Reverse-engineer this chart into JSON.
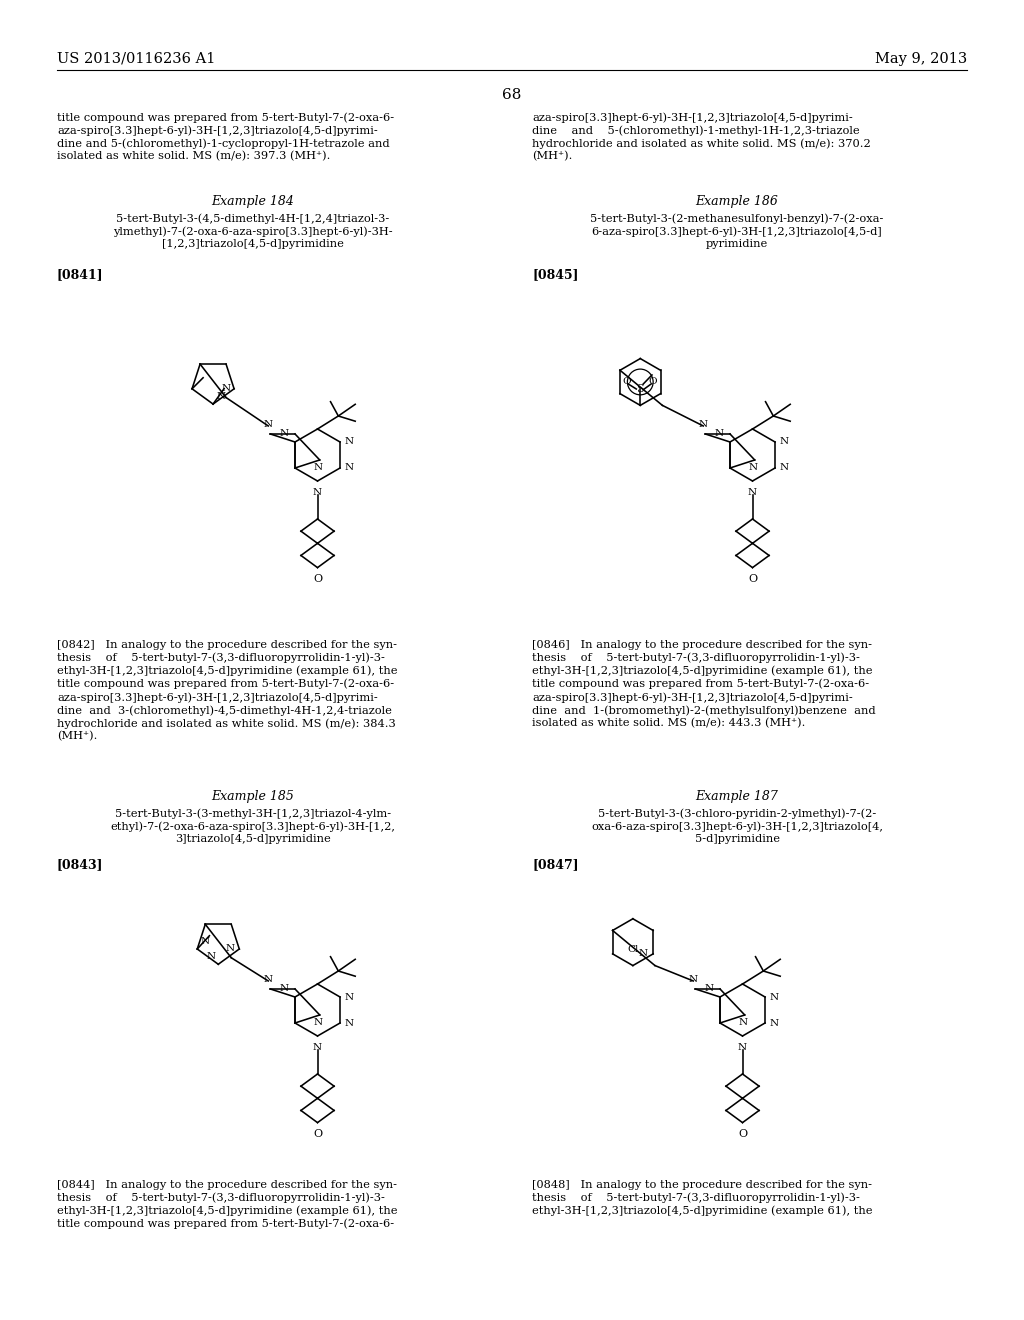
{
  "page_header_left": "US 2013/0116236 A1",
  "page_header_right": "May 9, 2013",
  "page_number": "68",
  "background_color": "#ffffff",
  "top_text_left": "title compound was prepared from 5-tert-Butyl-7-(2-oxa-6-\naza-spiro[3.3]hept-6-yl)-3H-[1,2,3]triazolo[4,5-d]pyrimi-\ndine and 5-(chloromethyl)-1-cyclopropyl-1H-tetrazole and\nisolated as white solid. MS (m/e): 397.3 (MH⁺).",
  "top_text_right": "aza-spiro[3.3]hept-6-yl)-3H-[1,2,3]triazolo[4,5-d]pyrimi-\ndine    and    5-(chloromethyl)-1-methyl-1H-1,2,3-triazole\nhydrochloride and isolated as white solid. MS (m/e): 370.2\n(MH⁺).",
  "example184_title": "Example 184",
  "example184_name": "5-tert-Butyl-3-(4,5-dimethyl-4H-[1,2,4]triazol-3-\nylmethyl)-7-(2-oxa-6-aza-spiro[3.3]hept-6-yl)-3H-\n[1,2,3]triazolo[4,5-d]pyrimidine",
  "example184_label": "[0841]",
  "example186_title": "Example 186",
  "example186_name": "5-tert-Butyl-3-(2-methanesulfonyl-benzyl)-7-(2-oxa-\n6-aza-spiro[3.3]hept-6-yl)-3H-[1,2,3]triazolo[4,5-d]\npyrimidine",
  "example186_label": "[0845]",
  "text0842": "[0842]   In analogy to the procedure described for the syn-\nthesis    of    5-tert-butyl-7-(3,3-difluoropyrrolidin-1-yl)-3-\nethyl-3H-[1,2,3]triazolo[4,5-d]pyrimidine (example 61), the\ntitle compound was prepared from 5-tert-Butyl-7-(2-oxa-6-\naza-spiro[3.3]hept-6-yl)-3H-[1,2,3]triazolo[4,5-d]pyrimi-\ndine  and  3-(chloromethyl)-4,5-dimethyl-4H-1,2,4-triazole\nhydrochloride and isolated as white solid. MS (m/e): 384.3\n(MH⁺).",
  "text0846": "[0846]   In analogy to the procedure described for the syn-\nthesis    of    5-tert-butyl-7-(3,3-difluoropyrrolidin-1-yl)-3-\nethyl-3H-[1,2,3]triazolo[4,5-d]pyrimidine (example 61), the\ntitle compound was prepared from 5-tert-Butyl-7-(2-oxa-6-\naza-spiro[3.3]hept-6-yl)-3H-[1,2,3]triazolo[4,5-d]pyrimi-\ndine  and  1-(bromomethyl)-2-(methylsulfonyl)benzene  and\nisolated as white solid. MS (m/e): 443.3 (MH⁺).",
  "example185_title": "Example 185",
  "example185_name": "5-tert-Butyl-3-(3-methyl-3H-[1,2,3]triazol-4-ylm-\nethyl)-7-(2-oxa-6-aza-spiro[3.3]hept-6-yl)-3H-[1,2,\n3]triazolo[4,5-d]pyrimidine",
  "example185_label": "[0843]",
  "example187_title": "Example 187",
  "example187_name": "5-tert-Butyl-3-(3-chloro-pyridin-2-ylmethyl)-7-(2-\noxa-6-aza-spiro[3.3]hept-6-yl)-3H-[1,2,3]triazolo[4,\n5-d]pyrimidine",
  "example187_label": "[0847]",
  "text0844_partial": "[0844]   In analogy to the procedure described for the syn-\nthesis    of    5-tert-butyl-7-(3,3-difluoropyrrolidin-1-yl)-3-\nethyl-3H-[1,2,3]triazolo[4,5-d]pyrimidine (example 61), the\ntitle compound was prepared from 5-tert-Butyl-7-(2-oxa-6-",
  "text0848_partial": "[0848]   In analogy to the procedure described for the syn-\nthesis    of    5-tert-butyl-7-(3,3-difluoropyrrolidin-1-yl)-3-\nethyl-3H-[1,2,3]triazolo[4,5-d]pyrimidine (example 61), the"
}
